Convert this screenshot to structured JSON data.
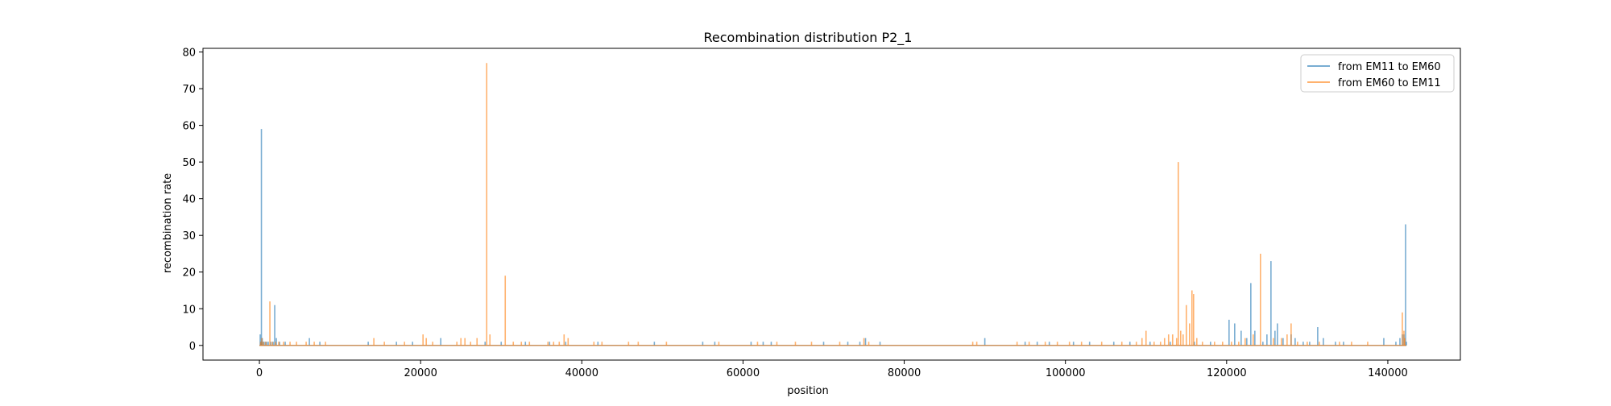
{
  "chart_data": {
    "type": "line",
    "title": "Recombination distribution P2_1",
    "xlabel": "position",
    "ylabel": "recombination rate",
    "xlim": [
      -7000,
      149000
    ],
    "ylim": [
      -4,
      81
    ],
    "xticks": [
      0,
      20000,
      40000,
      60000,
      80000,
      100000,
      120000,
      140000
    ],
    "yticks": [
      0,
      10,
      20,
      30,
      40,
      50,
      60,
      70,
      80
    ],
    "grid": false,
    "legend_position": "top-right",
    "series": [
      {
        "name": "from EM11 to EM60",
        "color": "#1f77b4",
        "spikes": [
          [
            100,
            3
          ],
          [
            200,
            1
          ],
          [
            250,
            59
          ],
          [
            350,
            2
          ],
          [
            500,
            1
          ],
          [
            700,
            1
          ],
          [
            900,
            1
          ],
          [
            1100,
            1
          ],
          [
            1400,
            1
          ],
          [
            1700,
            1
          ],
          [
            1900,
            11
          ],
          [
            2100,
            2
          ],
          [
            2500,
            1
          ],
          [
            3200,
            1
          ],
          [
            6200,
            2
          ],
          [
            7500,
            1
          ],
          [
            13500,
            1
          ],
          [
            17000,
            1
          ],
          [
            19000,
            1
          ],
          [
            22500,
            2
          ],
          [
            28000,
            1
          ],
          [
            30000,
            1
          ],
          [
            33000,
            1
          ],
          [
            36000,
            1
          ],
          [
            38000,
            1
          ],
          [
            42000,
            1
          ],
          [
            49000,
            1
          ],
          [
            55000,
            1
          ],
          [
            56500,
            1
          ],
          [
            61000,
            1
          ],
          [
            62500,
            1
          ],
          [
            63500,
            1
          ],
          [
            70000,
            1
          ],
          [
            73000,
            1
          ],
          [
            74500,
            1
          ],
          [
            75200,
            2
          ],
          [
            77000,
            1
          ],
          [
            90000,
            2
          ],
          [
            95000,
            1
          ],
          [
            96500,
            1
          ],
          [
            98000,
            1
          ],
          [
            101000,
            1
          ],
          [
            103000,
            1
          ],
          [
            106000,
            1
          ],
          [
            108000,
            1
          ],
          [
            110500,
            1
          ],
          [
            113000,
            1
          ],
          [
            116000,
            1
          ],
          [
            118000,
            1
          ],
          [
            120300,
            7
          ],
          [
            121000,
            6
          ],
          [
            121800,
            4
          ],
          [
            122500,
            2
          ],
          [
            123000,
            17
          ],
          [
            123500,
            4
          ],
          [
            124500,
            1
          ],
          [
            125000,
            3
          ],
          [
            125500,
            23
          ],
          [
            126000,
            4
          ],
          [
            126300,
            6
          ],
          [
            127000,
            2
          ],
          [
            128000,
            3
          ],
          [
            128500,
            2
          ],
          [
            129500,
            1
          ],
          [
            130300,
            1
          ],
          [
            131300,
            5
          ],
          [
            132000,
            2
          ],
          [
            133500,
            1
          ],
          [
            134500,
            1
          ],
          [
            139500,
            2
          ],
          [
            141000,
            1
          ],
          [
            141500,
            2
          ],
          [
            141800,
            3
          ],
          [
            142000,
            3
          ],
          [
            142200,
            33
          ],
          [
            142300,
            1
          ]
        ]
      },
      {
        "name": "from EM60 to EM11",
        "color": "#ff7f0e",
        "spikes": [
          [
            150,
            1
          ],
          [
            300,
            2
          ],
          [
            500,
            1
          ],
          [
            800,
            1
          ],
          [
            1300,
            12
          ],
          [
            1600,
            1
          ],
          [
            2000,
            1
          ],
          [
            2400,
            1
          ],
          [
            3000,
            1
          ],
          [
            3800,
            1
          ],
          [
            4600,
            1
          ],
          [
            5800,
            1
          ],
          [
            6800,
            1
          ],
          [
            8200,
            1
          ],
          [
            14200,
            2
          ],
          [
            15500,
            1
          ],
          [
            18000,
            1
          ],
          [
            20300,
            3
          ],
          [
            20700,
            2
          ],
          [
            21500,
            1
          ],
          [
            24500,
            1
          ],
          [
            25000,
            2
          ],
          [
            25500,
            2
          ],
          [
            26200,
            1
          ],
          [
            27000,
            2
          ],
          [
            28200,
            77
          ],
          [
            28600,
            3
          ],
          [
            30500,
            19
          ],
          [
            31500,
            1
          ],
          [
            32500,
            1
          ],
          [
            33500,
            1
          ],
          [
            35800,
            1
          ],
          [
            36500,
            1
          ],
          [
            37200,
            1
          ],
          [
            37800,
            3
          ],
          [
            38300,
            2
          ],
          [
            41500,
            1
          ],
          [
            42500,
            1
          ],
          [
            45800,
            1
          ],
          [
            47000,
            1
          ],
          [
            50500,
            1
          ],
          [
            57000,
            1
          ],
          [
            61800,
            1
          ],
          [
            64200,
            1
          ],
          [
            66500,
            1
          ],
          [
            68500,
            1
          ],
          [
            72000,
            1
          ],
          [
            75000,
            2
          ],
          [
            75600,
            1
          ],
          [
            88500,
            1
          ],
          [
            89000,
            1
          ],
          [
            94000,
            1
          ],
          [
            95500,
            1
          ],
          [
            97500,
            1
          ],
          [
            99000,
            1
          ],
          [
            100500,
            1
          ],
          [
            102000,
            1
          ],
          [
            104500,
            1
          ],
          [
            107000,
            1
          ],
          [
            108800,
            1
          ],
          [
            109500,
            2
          ],
          [
            110000,
            4
          ],
          [
            111000,
            1
          ],
          [
            111800,
            1
          ],
          [
            112300,
            2
          ],
          [
            112800,
            3
          ],
          [
            113300,
            3
          ],
          [
            113800,
            2
          ],
          [
            114000,
            50
          ],
          [
            114300,
            4
          ],
          [
            114600,
            3
          ],
          [
            115000,
            11
          ],
          [
            115400,
            6
          ],
          [
            115700,
            15
          ],
          [
            115900,
            14
          ],
          [
            116300,
            2
          ],
          [
            117000,
            1
          ],
          [
            118500,
            1
          ],
          [
            119500,
            1
          ],
          [
            120600,
            1
          ],
          [
            121500,
            1
          ],
          [
            122300,
            2
          ],
          [
            123300,
            3
          ],
          [
            124200,
            25
          ],
          [
            125800,
            2
          ],
          [
            126800,
            2
          ],
          [
            127500,
            3
          ],
          [
            128000,
            6
          ],
          [
            128800,
            1
          ],
          [
            130000,
            1
          ],
          [
            131500,
            1
          ],
          [
            134000,
            1
          ],
          [
            135500,
            1
          ],
          [
            137500,
            1
          ],
          [
            141800,
            9
          ],
          [
            142000,
            4
          ],
          [
            142100,
            2
          ]
        ]
      }
    ]
  }
}
